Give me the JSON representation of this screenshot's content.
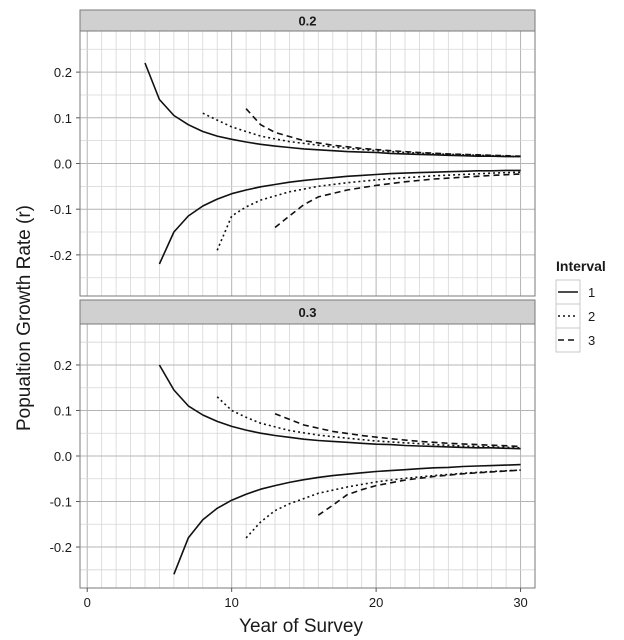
{
  "chart_data": {
    "type": "line",
    "xlabel": "Year of Survey",
    "ylabel": "Popualtion Growth Rate (r)",
    "xlim": [
      -0.5,
      31
    ],
    "ylim": [
      -0.29,
      0.29
    ],
    "x_ticks": [
      0,
      10,
      20,
      30
    ],
    "x_tick_labels": [
      "0",
      "10",
      "20",
      "30"
    ],
    "y_ticks": [
      0.2,
      0.1,
      0.0,
      -0.1,
      -0.2
    ],
    "y_tick_labels": [
      "0.2",
      "0.1",
      "0.0",
      "-0.1",
      "-0.2"
    ],
    "grid": true,
    "legend": {
      "title": "Interval",
      "placement": "right",
      "entries": [
        {
          "label": "1",
          "dash": "solid"
        },
        {
          "label": "2",
          "dash": "dotted"
        },
        {
          "label": "3",
          "dash": "dashed"
        }
      ]
    },
    "panels": [
      {
        "label": "0.2",
        "series": [
          {
            "interval": "1",
            "x": [
              4,
              5,
              6,
              7,
              8,
              9,
              10,
              11,
              12,
              13,
              14,
              15,
              16,
              17,
              18,
              19,
              20,
              21,
              22,
              23,
              24,
              25,
              26,
              27,
              28,
              29,
              30
            ],
            "y": [
              0.22,
              0.14,
              0.105,
              0.085,
              0.07,
              0.06,
              0.053,
              0.047,
              0.042,
              0.038,
              0.035,
              0.032,
              0.03,
              0.028,
              0.026,
              0.025,
              0.024,
              0.022,
              0.021,
              0.02,
              0.019,
              0.018,
              0.017,
              0.016,
              0.016,
              0.015,
              0.015
            ]
          },
          {
            "interval": "1",
            "x": [
              5,
              6,
              7,
              8,
              9,
              10,
              11,
              12,
              13,
              14,
              15,
              16,
              17,
              18,
              19,
              20,
              21,
              22,
              23,
              24,
              25,
              26,
              27,
              28,
              29,
              30
            ],
            "y": [
              -0.22,
              -0.15,
              -0.115,
              -0.093,
              -0.078,
              -0.066,
              -0.058,
              -0.051,
              -0.046,
              -0.041,
              -0.037,
              -0.034,
              -0.031,
              -0.028,
              -0.026,
              -0.024,
              -0.022,
              -0.021,
              -0.02,
              -0.019,
              -0.018,
              -0.017,
              -0.016,
              -0.016,
              -0.015,
              -0.015
            ]
          },
          {
            "interval": "2",
            "x": [
              8,
              9,
              10,
              12,
              14,
              16,
              18,
              20,
              22,
              24,
              26,
              28,
              30
            ],
            "y": [
              0.11,
              0.095,
              0.08,
              0.06,
              0.048,
              0.04,
              0.033,
              0.028,
              0.024,
              0.021,
              0.019,
              0.017,
              0.015
            ]
          },
          {
            "interval": "2",
            "x": [
              9,
              10,
              11,
              12,
              14,
              16,
              18,
              20,
              22,
              24,
              26,
              28,
              30
            ],
            "y": [
              -0.19,
              -0.115,
              -0.095,
              -0.08,
              -0.062,
              -0.05,
              -0.042,
              -0.036,
              -0.031,
              -0.027,
              -0.024,
              -0.021,
              -0.019
            ]
          },
          {
            "interval": "3",
            "x": [
              11,
              12,
              13,
              15,
              17,
              19,
              21,
              23,
              25,
              27,
              30
            ],
            "y": [
              0.12,
              0.085,
              0.068,
              0.05,
              0.04,
              0.033,
              0.028,
              0.024,
              0.021,
              0.019,
              0.016
            ]
          },
          {
            "interval": "3",
            "x": [
              13,
              14,
              15,
              16,
              18,
              20,
              22,
              24,
              26,
              28,
              30
            ],
            "y": [
              -0.14,
              -0.115,
              -0.09,
              -0.073,
              -0.058,
              -0.048,
              -0.04,
              -0.034,
              -0.03,
              -0.026,
              -0.023
            ]
          }
        ]
      },
      {
        "label": "0.3",
        "series": [
          {
            "interval": "1",
            "x": [
              5,
              6,
              7,
              8,
              9,
              10,
              11,
              12,
              13,
              14,
              15,
              16,
              17,
              18,
              19,
              20,
              21,
              22,
              23,
              24,
              25,
              26,
              27,
              28,
              29,
              30
            ],
            "y": [
              0.2,
              0.145,
              0.11,
              0.09,
              0.076,
              0.065,
              0.057,
              0.05,
              0.045,
              0.041,
              0.037,
              0.034,
              0.032,
              0.03,
              0.028,
              0.026,
              0.025,
              0.023,
              0.022,
              0.021,
              0.02,
              0.019,
              0.018,
              0.018,
              0.017,
              0.016
            ]
          },
          {
            "interval": "1",
            "x": [
              6,
              7,
              8,
              9,
              10,
              11,
              12,
              13,
              14,
              15,
              16,
              17,
              18,
              19,
              20,
              21,
              22,
              23,
              24,
              25,
              26,
              27,
              28,
              29,
              30
            ],
            "y": [
              -0.26,
              -0.18,
              -0.14,
              -0.115,
              -0.097,
              -0.084,
              -0.073,
              -0.065,
              -0.058,
              -0.052,
              -0.047,
              -0.043,
              -0.04,
              -0.037,
              -0.034,
              -0.032,
              -0.03,
              -0.028,
              -0.026,
              -0.025,
              -0.023,
              -0.022,
              -0.021,
              -0.02,
              -0.019
            ]
          },
          {
            "interval": "2",
            "x": [
              9,
              10,
              11,
              12,
              14,
              16,
              18,
              20,
              22,
              24,
              26,
              28,
              30
            ],
            "y": [
              0.13,
              0.1,
              0.085,
              0.072,
              0.056,
              0.046,
              0.039,
              0.033,
              0.029,
              0.025,
              0.022,
              0.02,
              0.018
            ]
          },
          {
            "interval": "2",
            "x": [
              11,
              12,
              13,
              14,
              16,
              18,
              20,
              22,
              24,
              26,
              28,
              30
            ],
            "y": [
              -0.18,
              -0.145,
              -0.12,
              -0.105,
              -0.082,
              -0.068,
              -0.057,
              -0.049,
              -0.043,
              -0.038,
              -0.034,
              -0.031
            ]
          },
          {
            "interval": "3",
            "x": [
              13,
              15,
              17,
              19,
              21,
              23,
              25,
              27,
              30
            ],
            "y": [
              0.093,
              0.068,
              0.054,
              0.045,
              0.038,
              0.032,
              0.028,
              0.025,
              0.021
            ]
          },
          {
            "interval": "3",
            "x": [
              16,
              17,
              18,
              19,
              20,
              22,
              24,
              26,
              28,
              30
            ],
            "y": [
              -0.13,
              -0.108,
              -0.085,
              -0.074,
              -0.065,
              -0.053,
              -0.045,
              -0.039,
              -0.035,
              -0.031
            ]
          }
        ]
      }
    ]
  }
}
